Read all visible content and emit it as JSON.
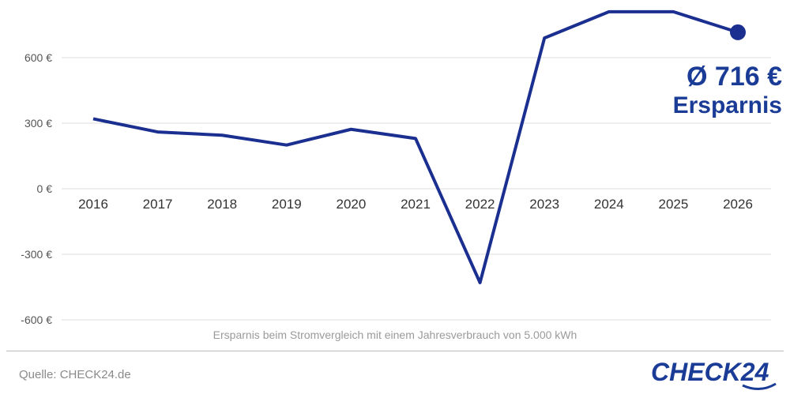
{
  "chart_data": {
    "type": "line",
    "x": [
      "2016",
      "2017",
      "2018",
      "2019",
      "2020",
      "2021",
      "2022",
      "2023",
      "2024",
      "2025",
      "2026"
    ],
    "series": [
      {
        "values": [
          320,
          260,
          245,
          200,
          272,
          230,
          -430,
          690,
          810,
          810,
          716
        ],
        "color": "#1a2f8f"
      }
    ],
    "yticks": [
      600,
      300,
      0,
      -300,
      -600
    ],
    "ytick_labels": [
      "600 €",
      "300 €",
      "0 €",
      "-300 €",
      "-600 €"
    ],
    "ylim": [
      -620,
      820
    ],
    "grid": true
  },
  "annotation": {
    "value": "Ø 716 €",
    "label": "Ersparnis"
  },
  "caption": "Ersparnis beim Stromvergleich mit einem Jahresverbrauch von 5.000 kWh",
  "source": "Quelle: CHECK24.de",
  "logo": {
    "text": "CHECK24",
    "color": "#1a3c96"
  }
}
